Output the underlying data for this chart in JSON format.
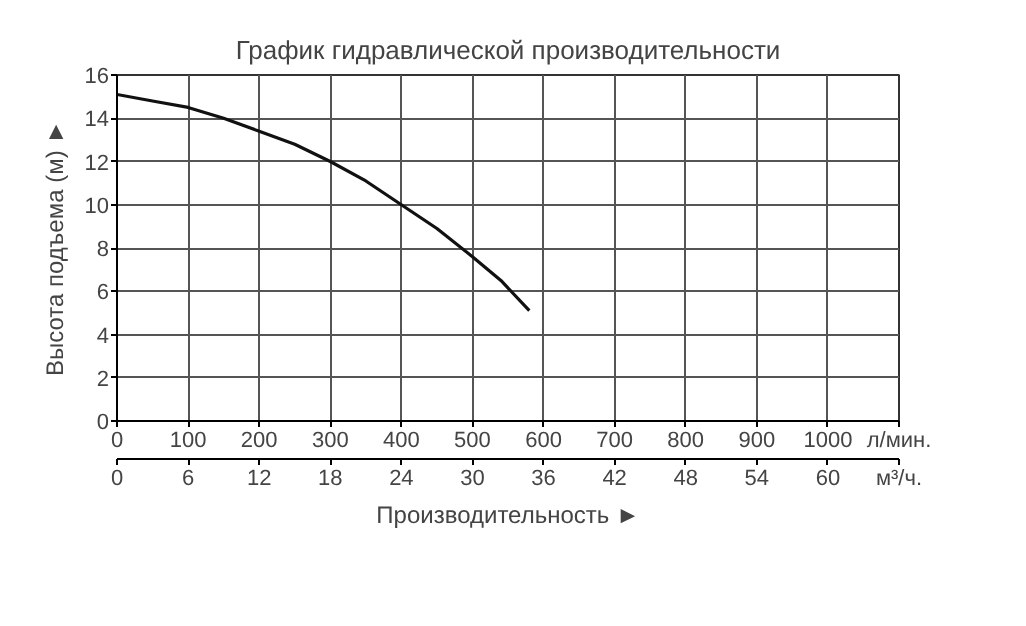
{
  "chart_data": {
    "type": "line",
    "title": "График гидравлической производительности",
    "xlabel": "Производительность ►",
    "ylabel": "Высота подъема (м) ►",
    "x": [
      0,
      50,
      100,
      150,
      200,
      250,
      300,
      350,
      400,
      450,
      500,
      540,
      580
    ],
    "series": [
      {
        "color": "#111111",
        "values": [
          15.1,
          14.8,
          14.5,
          14.0,
          13.4,
          12.8,
          12.0,
          11.1,
          10.0,
          8.9,
          7.6,
          6.5,
          5.1
        ]
      }
    ],
    "xlim": [
      0,
      1100
    ],
    "xticks": [
      0,
      100,
      200,
      300,
      400,
      500,
      600,
      700,
      800,
      900,
      1000,
      {
        "value": 1100,
        "label": "л/мин."
      }
    ],
    "x2lim": [
      0,
      66
    ],
    "x2ticks": [
      0,
      6,
      12,
      18,
      24,
      30,
      36,
      42,
      48,
      54,
      60,
      {
        "value": 66,
        "label": "м³/ч."
      }
    ],
    "ylim": [
      0,
      16
    ],
    "yticks": [
      0,
      2,
      4,
      6,
      8,
      10,
      12,
      14,
      16
    ],
    "grid": true,
    "marker": "none",
    "line_style": "solid"
  }
}
